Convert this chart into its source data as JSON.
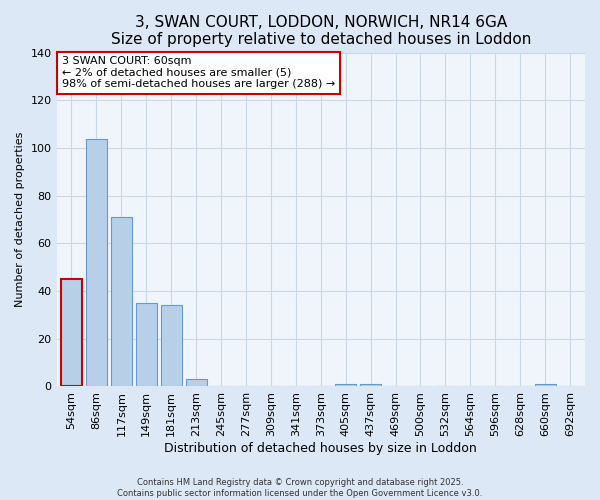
{
  "title": "3, SWAN COURT, LODDON, NORWICH, NR14 6GA",
  "subtitle": "Size of property relative to detached houses in Loddon",
  "xlabel": "Distribution of detached houses by size in Loddon",
  "ylabel": "Number of detached properties",
  "categories": [
    "54sqm",
    "86sqm",
    "117sqm",
    "149sqm",
    "181sqm",
    "213sqm",
    "245sqm",
    "277sqm",
    "309sqm",
    "341sqm",
    "373sqm",
    "405sqm",
    "437sqm",
    "469sqm",
    "500sqm",
    "532sqm",
    "564sqm",
    "596sqm",
    "628sqm",
    "660sqm",
    "692sqm"
  ],
  "values": [
    45,
    104,
    71,
    35,
    34,
    3,
    0,
    0,
    0,
    0,
    0,
    1,
    1,
    0,
    0,
    0,
    0,
    0,
    0,
    1,
    0
  ],
  "highlight_index": 0,
  "bar_color": "#b8cfe8",
  "bar_edge_color": "#6699cc",
  "highlight_edge_color": "#cc0000",
  "ylim": [
    0,
    140
  ],
  "yticks": [
    0,
    20,
    40,
    60,
    80,
    100,
    120,
    140
  ],
  "annotation_title": "3 SWAN COURT: 60sqm",
  "annotation_line1": "← 2% of detached houses are smaller (5)",
  "annotation_line2": "98% of semi-detached houses are larger (288) →",
  "annotation_box_facecolor": "#ffffff",
  "annotation_border_color": "#cc0000",
  "footer_line1": "Contains HM Land Registry data © Crown copyright and database right 2025.",
  "footer_line2": "Contains public sector information licensed under the Open Government Licence v3.0.",
  "background_color": "#dce8f5",
  "plot_background_color": "#f0f5fb",
  "grid_color": "#c8d8e8",
  "title_fontsize": 11,
  "subtitle_fontsize": 10
}
